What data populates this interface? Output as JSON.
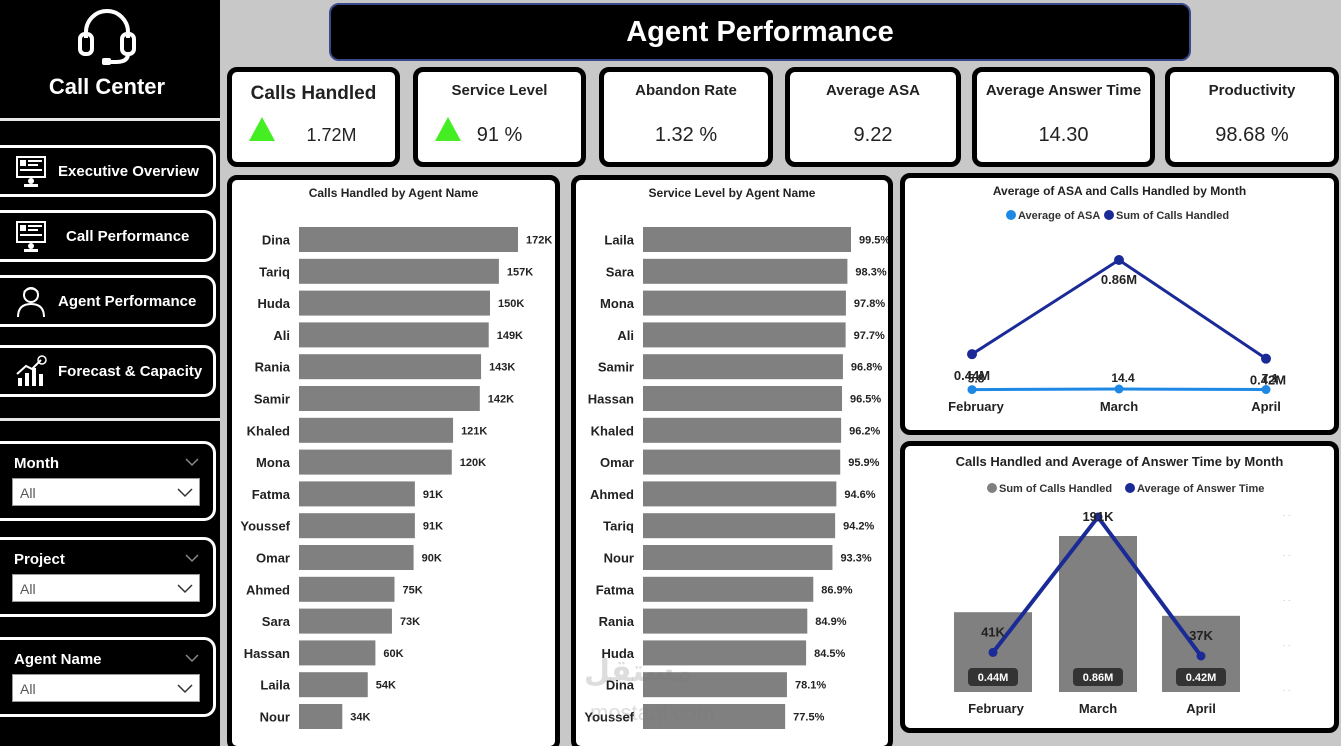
{
  "sidebar": {
    "brand": "Call Center",
    "nav": [
      {
        "label": "Executive Overview",
        "icon": "dashboard-icon"
      },
      {
        "label": "Call Performance",
        "icon": "dashboard-icon"
      },
      {
        "label": "Agent Performance",
        "icon": "person-icon"
      },
      {
        "label": "Forecast & Capacity",
        "icon": "chart-growth-icon"
      }
    ],
    "filters": [
      {
        "title": "Month",
        "value": "All"
      },
      {
        "title": "Project",
        "value": "All"
      },
      {
        "title": "Agent Name",
        "value": "All"
      }
    ]
  },
  "header": {
    "title": "Agent Performance"
  },
  "kpis": [
    {
      "title": "Calls Handled",
      "value": "1.72M",
      "trend": "up"
    },
    {
      "title": "Service Level",
      "value": "91 %",
      "trend": "up"
    },
    {
      "title": "Abandon Rate",
      "value": "1.32 %"
    },
    {
      "title": "Average ASA",
      "value": "9.22"
    },
    {
      "title": "Average Answer Time",
      "value": "14.30"
    },
    {
      "title": "Productivity",
      "value": "98.68 %"
    }
  ],
  "colors": {
    "up_arrow": "#44ee22",
    "bar": "#808080",
    "line_dark": "#1a2a96",
    "line_light": "#1e88e5"
  },
  "watermark": {
    "logo": "مستقل",
    "url": "mostaql.com"
  },
  "chart_data": [
    {
      "type": "bar",
      "orientation": "horizontal",
      "title": "Calls Handled by Agent Name",
      "categories": [
        "Dina",
        "Tariq",
        "Huda",
        "Ali",
        "Rania",
        "Samir",
        "Khaled",
        "Mona",
        "Fatma",
        "Youssef",
        "Omar",
        "Ahmed",
        "Sara",
        "Hassan",
        "Laila",
        "Nour"
      ],
      "values": [
        172,
        157,
        150,
        149,
        143,
        142,
        121,
        120,
        91,
        91,
        90,
        75,
        73,
        60,
        54,
        34
      ],
      "labels": [
        "172K",
        "157K",
        "150K",
        "149K",
        "143K",
        "142K",
        "121K",
        "120K",
        "91K",
        "91K",
        "90K",
        "75K",
        "73K",
        "60K",
        "54K",
        "34K"
      ],
      "unit": "K"
    },
    {
      "type": "bar",
      "orientation": "horizontal",
      "title": "Service Level by Agent Name",
      "categories": [
        "Laila",
        "Sara",
        "Mona",
        "Ali",
        "Samir",
        "Hassan",
        "Khaled",
        "Omar",
        "Ahmed",
        "Tariq",
        "Nour",
        "Fatma",
        "Rania",
        "Huda",
        "Dina",
        "Youssef"
      ],
      "values": [
        99.5,
        98.3,
        97.8,
        97.7,
        96.8,
        96.5,
        96.2,
        95.9,
        94.6,
        94.2,
        93.3,
        86.9,
        84.9,
        84.5,
        78.1,
        77.5
      ],
      "labels": [
        "99.5%",
        "98.3%",
        "97.8%",
        "97.7%",
        "96.8%",
        "96.5%",
        "96.2%",
        "95.9%",
        "94.6%",
        "94.2%",
        "93.3%",
        "86.9%",
        "84.9%",
        "84.5%",
        "78.1%",
        "77.5%"
      ],
      "unit": "%"
    },
    {
      "type": "line",
      "title": "Average of ASA and Calls Handled by Month",
      "categories": [
        "February",
        "March",
        "April"
      ],
      "series": [
        {
          "name": "Average of ASA",
          "values": [
            5.8,
            14.4,
            7.1
          ],
          "labels": [
            "5.8",
            "14.4",
            "7.1"
          ],
          "color": "#1e88e5"
        },
        {
          "name": "Sum of Calls Handled",
          "values": [
            0.44,
            0.86,
            0.42
          ],
          "labels": [
            "0.44M",
            "0.86M",
            "0.42M"
          ],
          "color": "#1a2a96"
        }
      ]
    },
    {
      "type": "bar",
      "title": "Calls Handled and Average of Answer Time by Month",
      "categories": [
        "February",
        "March",
        "April"
      ],
      "series": [
        {
          "name": "Sum of Calls Handled",
          "values": [
            0.44,
            0.86,
            0.42
          ],
          "labels": [
            "0.44M",
            "0.86M",
            "0.42M"
          ],
          "color": "#808080"
        },
        {
          "name": "Average of Answer Time",
          "values": [
            41,
            191,
            37
          ],
          "labels": [
            "41K",
            "191K",
            "37K"
          ],
          "color": "#1a2a96"
        }
      ]
    }
  ]
}
